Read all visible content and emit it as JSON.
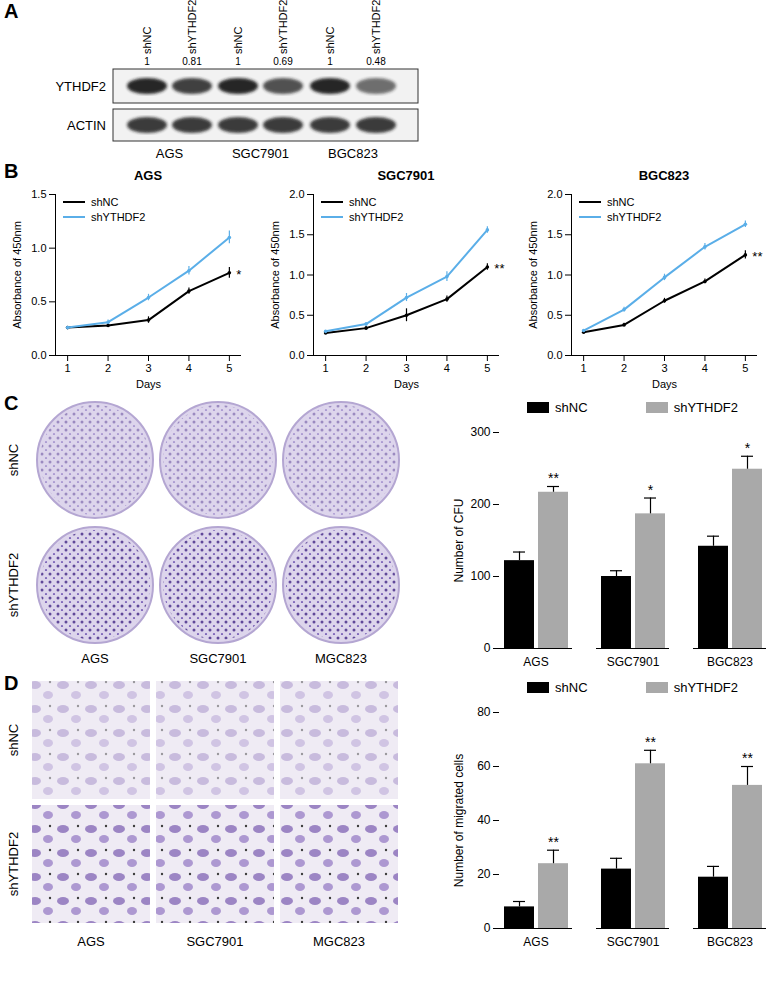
{
  "panel_labels": [
    "A",
    "B",
    "C",
    "D"
  ],
  "blot": {
    "columns": [
      {
        "label": "shNC",
        "ratio": 1
      },
      {
        "label": "shYTHDF2",
        "ratio": 0.81
      },
      {
        "label": "shNC",
        "ratio": 1
      },
      {
        "label": "shYTHDF2",
        "ratio": 0.69
      },
      {
        "label": "shNC",
        "ratio": 1
      },
      {
        "label": "shYTHDF2",
        "ratio": 0.48
      }
    ],
    "rows": [
      "YTHDF2",
      "ACTIN"
    ],
    "cell_lines": [
      "AGS",
      "SGC7901",
      "BGC823"
    ]
  },
  "colony_images": {
    "rows": [
      "shNC",
      "shYTHDF2"
    ],
    "columns": [
      "AGS",
      "SGC7901",
      "MGC823"
    ]
  },
  "migration_images": {
    "rows": [
      "shNC",
      "shYTHDF2"
    ],
    "columns": [
      "AGS",
      "SGC7901",
      "MGC823"
    ]
  },
  "chart_data": [
    {
      "type": "line",
      "title": "AGS",
      "x_label": "Days",
      "y_label": "Absorbance of 450nm",
      "x": [
        1,
        2,
        3,
        4,
        5
      ],
      "xlim": [
        0.7,
        5.3
      ],
      "xticks": [
        1,
        2,
        3,
        4,
        5
      ],
      "ylim": [
        0,
        1.5
      ],
      "yticks": [
        {
          "value": 0,
          "label": "0.0"
        },
        0.5,
        {
          "value": 1,
          "label": "1.0"
        },
        1.5
      ],
      "legend": "top-left",
      "series": [
        {
          "name": "shNC",
          "color": "#000000",
          "values": [
            0.26,
            0.28,
            0.33,
            0.6,
            0.77
          ],
          "errors": [
            0.01,
            0.02,
            0.03,
            0.03,
            0.05
          ],
          "significance": "*"
        },
        {
          "name": "shYTHDF2",
          "color": "#5aaee8",
          "values": [
            0.26,
            0.31,
            0.54,
            0.79,
            1.1
          ],
          "errors": [
            0.01,
            0.02,
            0.03,
            0.04,
            0.06
          ]
        }
      ]
    },
    {
      "type": "line",
      "title": "SGC7901",
      "x_label": "Days",
      "y_label": "Absorbance of 450nm",
      "x": [
        1,
        2,
        3,
        4,
        5
      ],
      "xlim": [
        0.7,
        5.3
      ],
      "xticks": [
        1,
        2,
        3,
        4,
        5
      ],
      "ylim": [
        0,
        2
      ],
      "yticks": [
        {
          "value": 0,
          "label": "0.0"
        },
        0.5,
        {
          "value": 1,
          "label": "1.0"
        },
        1.5,
        {
          "value": 2,
          "label": "2.0"
        }
      ],
      "legend": "top-left",
      "series": [
        {
          "name": "shNC",
          "color": "#000000",
          "values": [
            0.28,
            0.34,
            0.5,
            0.7,
            1.1
          ],
          "errors": [
            0.01,
            0.02,
            0.08,
            0.04,
            0.04
          ],
          "significance": "**"
        },
        {
          "name": "shYTHDF2",
          "color": "#5aaee8",
          "values": [
            0.3,
            0.39,
            0.72,
            0.98,
            1.56
          ],
          "errors": [
            0.01,
            0.02,
            0.05,
            0.06,
            0.04
          ]
        }
      ]
    },
    {
      "type": "line",
      "title": "BGC823",
      "x_label": "Days",
      "y_label": "Absorbance of 450nm",
      "x": [
        1,
        2,
        3,
        4,
        5
      ],
      "xlim": [
        0.7,
        5.3
      ],
      "xticks": [
        1,
        2,
        3,
        4,
        5
      ],
      "ylim": [
        0,
        2
      ],
      "yticks": [
        {
          "value": 0,
          "label": "0.0"
        },
        0.5,
        {
          "value": 1,
          "label": "1.0"
        },
        1.5,
        {
          "value": 2,
          "label": "2.0"
        }
      ],
      "legend": "top-left",
      "series": [
        {
          "name": "shNC",
          "color": "#000000",
          "values": [
            0.29,
            0.38,
            0.68,
            0.92,
            1.25
          ],
          "errors": [
            0.01,
            0.02,
            0.03,
            0.03,
            0.05
          ],
          "significance": "**"
        },
        {
          "name": "shYTHDF2",
          "color": "#5aaee8",
          "values": [
            0.31,
            0.57,
            0.97,
            1.35,
            1.63
          ],
          "errors": [
            0.01,
            0.03,
            0.04,
            0.04,
            0.04
          ]
        }
      ]
    },
    {
      "type": "bar",
      "y_label": "Number of CFU",
      "categories": [
        "AGS",
        "SGC7901",
        "BGC823"
      ],
      "ylim": [
        0,
        300
      ],
      "yticks": [
        0,
        100,
        200,
        300
      ],
      "legend": "top",
      "series": [
        {
          "name": "shNC",
          "color": "#000000",
          "values": [
            122,
            100,
            142
          ],
          "errors": [
            12,
            8,
            14
          ]
        },
        {
          "name": "shYTHDF2",
          "color": "#a9a9a9",
          "values": [
            217,
            187,
            249
          ],
          "errors": [
            8,
            22,
            18
          ],
          "significance": [
            "**",
            "*",
            "*"
          ]
        }
      ]
    },
    {
      "type": "bar",
      "y_label": "Number of migrated cells",
      "categories": [
        "AGS",
        "SGC7901",
        "BGC823"
      ],
      "ylim": [
        0,
        80
      ],
      "yticks": [
        0,
        20,
        40,
        60,
        80
      ],
      "legend": "top",
      "series": [
        {
          "name": "shNC",
          "color": "#000000",
          "values": [
            8,
            22,
            19
          ],
          "errors": [
            2,
            4,
            4
          ]
        },
        {
          "name": "shYTHDF2",
          "color": "#a9a9a9",
          "values": [
            24,
            61,
            53
          ],
          "errors": [
            5,
            5,
            7
          ],
          "significance": [
            "**",
            "**",
            "**"
          ]
        }
      ]
    }
  ]
}
